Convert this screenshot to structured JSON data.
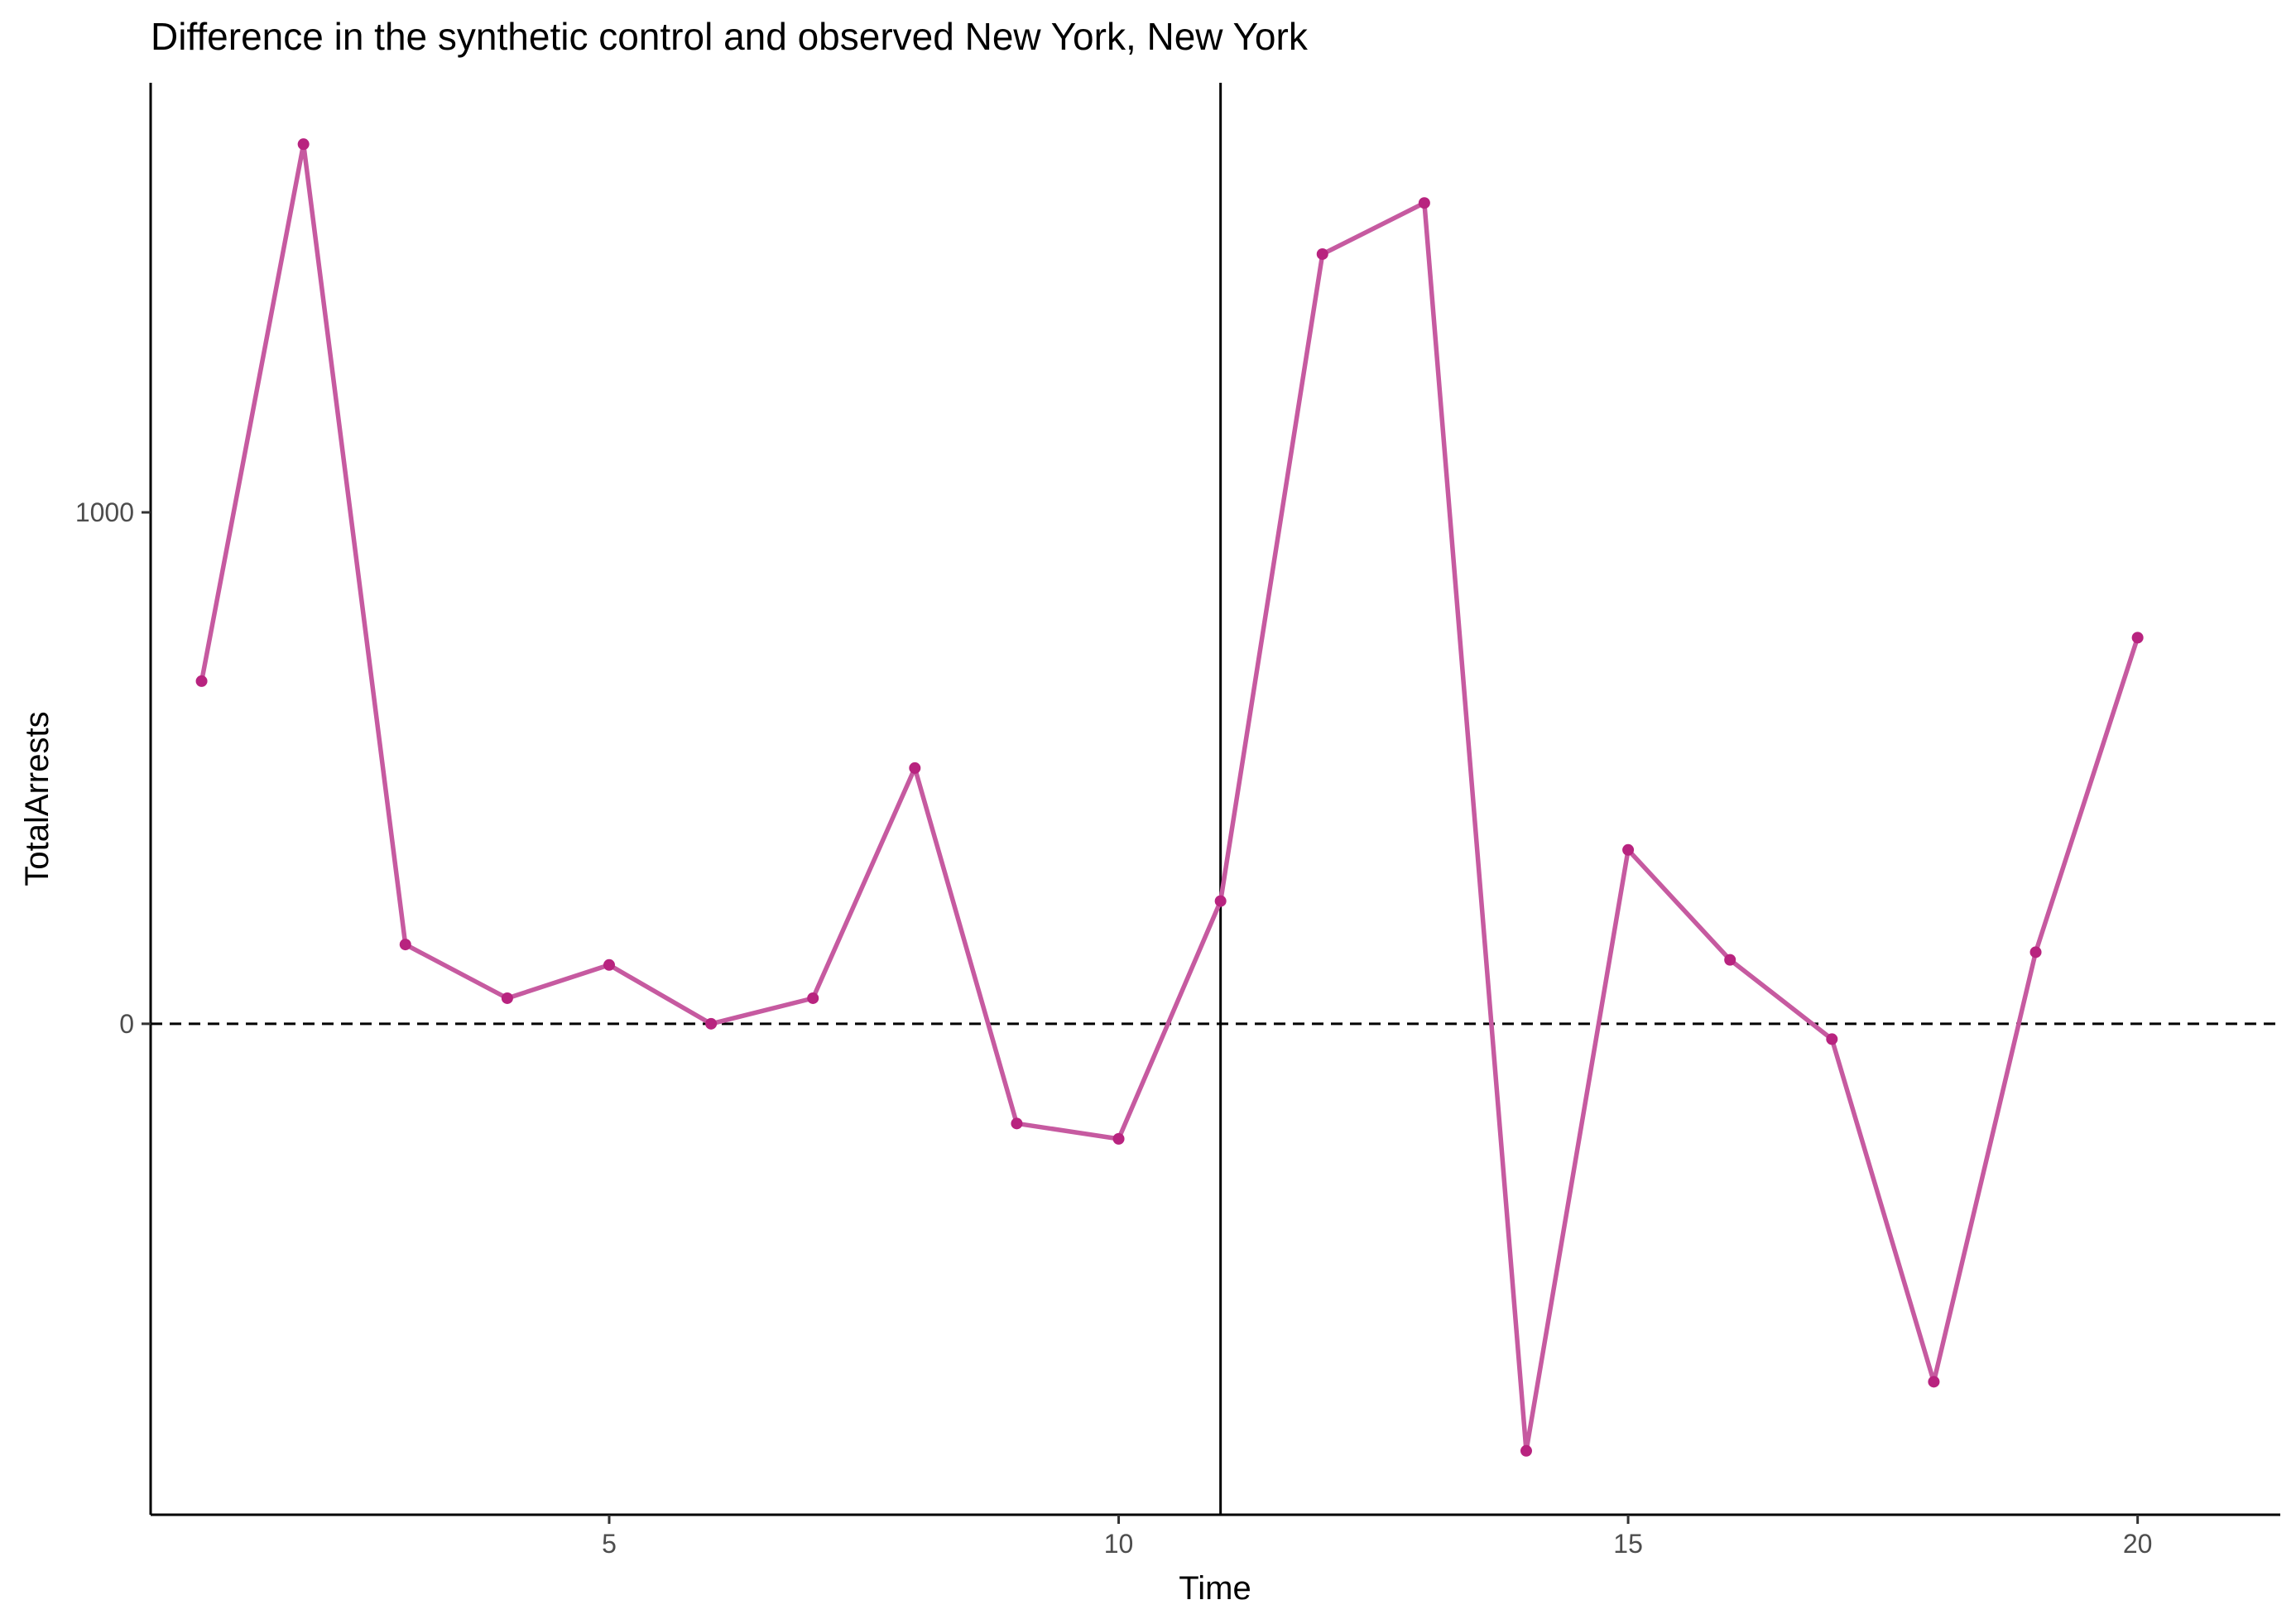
{
  "chart_data": {
    "type": "line",
    "title": "Difference in the synthetic control and observed New York, New York",
    "xlabel": "Time",
    "ylabel": "TotalArrests",
    "xlim": [
      0.5,
      21.4
    ],
    "ylim": [
      -960,
      1840
    ],
    "xticks": [
      5,
      10,
      15,
      20
    ],
    "yticks": [
      0,
      1000
    ],
    "grid": false,
    "legend": "none",
    "reference_lines": {
      "horizontal_dashed_y": 0,
      "vertical_solid_x": 11
    },
    "colors": {
      "line": "#c65aa0",
      "point": "#b8237f",
      "axis": "#000000"
    },
    "series": [
      {
        "x": [
          1,
          2,
          3,
          4,
          5,
          6,
          7,
          8,
          9,
          10,
          11,
          12,
          13,
          14,
          15,
          16,
          17,
          18,
          19,
          20
        ],
        "values": [
          670,
          1720,
          155,
          50,
          115,
          0,
          50,
          500,
          -195,
          -225,
          240,
          1505,
          1605,
          -835,
          340,
          125,
          -30,
          -700,
          140,
          755
        ]
      }
    ]
  }
}
